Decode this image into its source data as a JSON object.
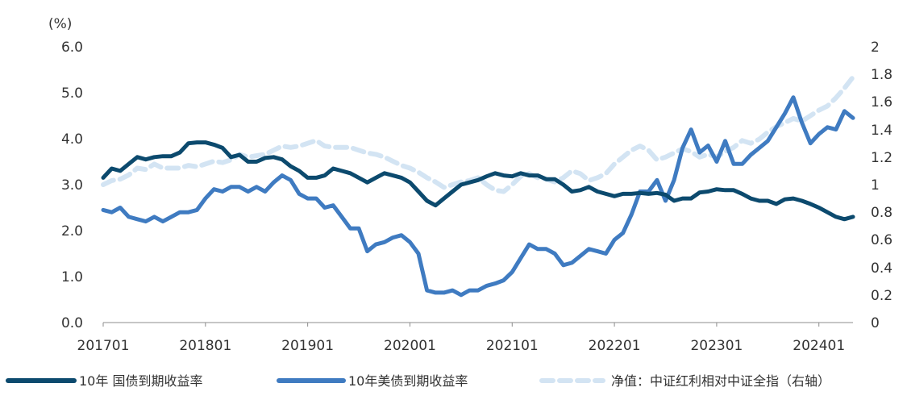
{
  "chart_data": {
    "type": "line",
    "title": "",
    "y_left": {
      "unit_label": "(%)",
      "range": [
        0,
        6
      ],
      "ticks": [
        "0.0",
        "1.0",
        "2.0",
        "3.0",
        "4.0",
        "5.0",
        "6.0"
      ]
    },
    "y_right": {
      "range": [
        0,
        2
      ],
      "ticks": [
        "0",
        "0.2",
        "0.4",
        "0.6",
        "0.8",
        "1",
        "1.2",
        "1.4",
        "1.6",
        "1.8",
        "2"
      ]
    },
    "x_axis": {
      "ticks": [
        "201701",
        "201801",
        "201901",
        "202001",
        "202101",
        "202201",
        "202301",
        "202401"
      ],
      "range": [
        "2017-01",
        "2024-05"
      ]
    },
    "grid": false,
    "legend_position": "bottom",
    "series": [
      {
        "name": "10年 国债到期收益率",
        "axis": "left",
        "color": "#0c4a6e",
        "style": "solid",
        "points": [
          [
            "2017-01",
            3.15
          ],
          [
            "2017-02",
            3.35
          ],
          [
            "2017-03",
            3.3
          ],
          [
            "2017-04",
            3.45
          ],
          [
            "2017-05",
            3.6
          ],
          [
            "2017-06",
            3.55
          ],
          [
            "2017-07",
            3.6
          ],
          [
            "2017-08",
            3.62
          ],
          [
            "2017-09",
            3.62
          ],
          [
            "2017-10",
            3.7
          ],
          [
            "2017-11",
            3.9
          ],
          [
            "2017-12",
            3.92
          ],
          [
            "2018-01",
            3.92
          ],
          [
            "2018-02",
            3.87
          ],
          [
            "2018-03",
            3.8
          ],
          [
            "2018-04",
            3.6
          ],
          [
            "2018-05",
            3.65
          ],
          [
            "2018-06",
            3.5
          ],
          [
            "2018-07",
            3.5
          ],
          [
            "2018-08",
            3.58
          ],
          [
            "2018-09",
            3.6
          ],
          [
            "2018-10",
            3.55
          ],
          [
            "2018-11",
            3.4
          ],
          [
            "2018-12",
            3.3
          ],
          [
            "2019-01",
            3.15
          ],
          [
            "2019-02",
            3.15
          ],
          [
            "2019-03",
            3.2
          ],
          [
            "2019-04",
            3.35
          ],
          [
            "2019-05",
            3.3
          ],
          [
            "2019-06",
            3.25
          ],
          [
            "2019-07",
            3.15
          ],
          [
            "2019-08",
            3.05
          ],
          [
            "2019-09",
            3.15
          ],
          [
            "2019-10",
            3.25
          ],
          [
            "2019-11",
            3.2
          ],
          [
            "2019-12",
            3.15
          ],
          [
            "2020-01",
            3.05
          ],
          [
            "2020-02",
            2.85
          ],
          [
            "2020-03",
            2.65
          ],
          [
            "2020-04",
            2.55
          ],
          [
            "2020-05",
            2.7
          ],
          [
            "2020-06",
            2.85
          ],
          [
            "2020-07",
            3.0
          ],
          [
            "2020-08",
            3.05
          ],
          [
            "2020-09",
            3.1
          ],
          [
            "2020-10",
            3.18
          ],
          [
            "2020-11",
            3.25
          ],
          [
            "2020-12",
            3.2
          ],
          [
            "2021-01",
            3.18
          ],
          [
            "2021-02",
            3.25
          ],
          [
            "2021-03",
            3.2
          ],
          [
            "2021-04",
            3.2
          ],
          [
            "2021-05",
            3.12
          ],
          [
            "2021-06",
            3.12
          ],
          [
            "2021-07",
            3.0
          ],
          [
            "2021-08",
            2.85
          ],
          [
            "2021-09",
            2.88
          ],
          [
            "2021-10",
            2.95
          ],
          [
            "2021-11",
            2.85
          ],
          [
            "2021-12",
            2.8
          ],
          [
            "2022-01",
            2.75
          ],
          [
            "2022-02",
            2.8
          ],
          [
            "2022-03",
            2.8
          ],
          [
            "2022-04",
            2.82
          ],
          [
            "2022-05",
            2.8
          ],
          [
            "2022-06",
            2.82
          ],
          [
            "2022-07",
            2.78
          ],
          [
            "2022-08",
            2.65
          ],
          [
            "2022-09",
            2.7
          ],
          [
            "2022-10",
            2.7
          ],
          [
            "2022-11",
            2.83
          ],
          [
            "2022-12",
            2.85
          ],
          [
            "2023-01",
            2.9
          ],
          [
            "2023-02",
            2.88
          ],
          [
            "2023-03",
            2.88
          ],
          [
            "2023-04",
            2.8
          ],
          [
            "2023-05",
            2.7
          ],
          [
            "2023-06",
            2.65
          ],
          [
            "2023-07",
            2.65
          ],
          [
            "2023-08",
            2.58
          ],
          [
            "2023-09",
            2.68
          ],
          [
            "2023-10",
            2.7
          ],
          [
            "2023-11",
            2.65
          ],
          [
            "2023-12",
            2.58
          ],
          [
            "2024-01",
            2.5
          ],
          [
            "2024-02",
            2.4
          ],
          [
            "2024-03",
            2.3
          ],
          [
            "2024-04",
            2.25
          ],
          [
            "2024-05",
            2.3
          ]
        ]
      },
      {
        "name": "10年美债到期收益率",
        "axis": "left",
        "color": "#3f7bc1",
        "style": "solid",
        "points": [
          [
            "2017-01",
            2.45
          ],
          [
            "2017-02",
            2.4
          ],
          [
            "2017-03",
            2.5
          ],
          [
            "2017-04",
            2.3
          ],
          [
            "2017-05",
            2.25
          ],
          [
            "2017-06",
            2.2
          ],
          [
            "2017-07",
            2.3
          ],
          [
            "2017-08",
            2.2
          ],
          [
            "2017-09",
            2.3
          ],
          [
            "2017-10",
            2.4
          ],
          [
            "2017-11",
            2.4
          ],
          [
            "2017-12",
            2.45
          ],
          [
            "2018-01",
            2.7
          ],
          [
            "2018-02",
            2.9
          ],
          [
            "2018-03",
            2.85
          ],
          [
            "2018-04",
            2.95
          ],
          [
            "2018-05",
            2.95
          ],
          [
            "2018-06",
            2.85
          ],
          [
            "2018-07",
            2.95
          ],
          [
            "2018-08",
            2.85
          ],
          [
            "2018-09",
            3.05
          ],
          [
            "2018-10",
            3.2
          ],
          [
            "2018-11",
            3.1
          ],
          [
            "2018-12",
            2.8
          ],
          [
            "2019-01",
            2.7
          ],
          [
            "2019-02",
            2.7
          ],
          [
            "2019-03",
            2.5
          ],
          [
            "2019-04",
            2.55
          ],
          [
            "2019-05",
            2.3
          ],
          [
            "2019-06",
            2.05
          ],
          [
            "2019-07",
            2.05
          ],
          [
            "2019-08",
            1.55
          ],
          [
            "2019-09",
            1.7
          ],
          [
            "2019-10",
            1.75
          ],
          [
            "2019-11",
            1.85
          ],
          [
            "2019-12",
            1.9
          ],
          [
            "2020-01",
            1.75
          ],
          [
            "2020-02",
            1.5
          ],
          [
            "2020-03",
            0.7
          ],
          [
            "2020-04",
            0.65
          ],
          [
            "2020-05",
            0.65
          ],
          [
            "2020-06",
            0.7
          ],
          [
            "2020-07",
            0.6
          ],
          [
            "2020-08",
            0.7
          ],
          [
            "2020-09",
            0.7
          ],
          [
            "2020-10",
            0.8
          ],
          [
            "2020-11",
            0.85
          ],
          [
            "2020-12",
            0.92
          ],
          [
            "2021-01",
            1.1
          ],
          [
            "2021-02",
            1.4
          ],
          [
            "2021-03",
            1.7
          ],
          [
            "2021-04",
            1.6
          ],
          [
            "2021-05",
            1.6
          ],
          [
            "2021-06",
            1.5
          ],
          [
            "2021-07",
            1.25
          ],
          [
            "2021-08",
            1.3
          ],
          [
            "2021-09",
            1.45
          ],
          [
            "2021-10",
            1.6
          ],
          [
            "2021-11",
            1.55
          ],
          [
            "2021-12",
            1.5
          ],
          [
            "2022-01",
            1.8
          ],
          [
            "2022-02",
            1.95
          ],
          [
            "2022-03",
            2.35
          ],
          [
            "2022-04",
            2.85
          ],
          [
            "2022-05",
            2.85
          ],
          [
            "2022-06",
            3.1
          ],
          [
            "2022-07",
            2.65
          ],
          [
            "2022-08",
            3.1
          ],
          [
            "2022-09",
            3.8
          ],
          [
            "2022-10",
            4.2
          ],
          [
            "2022-11",
            3.7
          ],
          [
            "2022-12",
            3.85
          ],
          [
            "2023-01",
            3.5
          ],
          [
            "2023-02",
            3.95
          ],
          [
            "2023-03",
            3.45
          ],
          [
            "2023-04",
            3.45
          ],
          [
            "2023-05",
            3.65
          ],
          [
            "2023-06",
            3.8
          ],
          [
            "2023-07",
            3.95
          ],
          [
            "2023-08",
            4.25
          ],
          [
            "2023-09",
            4.55
          ],
          [
            "2023-10",
            4.9
          ],
          [
            "2023-11",
            4.35
          ],
          [
            "2023-12",
            3.9
          ],
          [
            "2024-01",
            4.1
          ],
          [
            "2024-02",
            4.25
          ],
          [
            "2024-03",
            4.2
          ],
          [
            "2024-04",
            4.6
          ],
          [
            "2024-05",
            4.45
          ]
        ]
      },
      {
        "name": "净值：中证红利相对中证全指（右轴）",
        "axis": "right",
        "color": "#d3e4f3",
        "style": "dashed",
        "points": [
          [
            "2017-01",
            1.0
          ],
          [
            "2017-02",
            1.03
          ],
          [
            "2017-03",
            1.04
          ],
          [
            "2017-04",
            1.07
          ],
          [
            "2017-05",
            1.12
          ],
          [
            "2017-06",
            1.11
          ],
          [
            "2017-07",
            1.15
          ],
          [
            "2017-08",
            1.12
          ],
          [
            "2017-09",
            1.12
          ],
          [
            "2017-10",
            1.12
          ],
          [
            "2017-11",
            1.14
          ],
          [
            "2017-12",
            1.13
          ],
          [
            "2018-01",
            1.15
          ],
          [
            "2018-02",
            1.17
          ],
          [
            "2018-03",
            1.16
          ],
          [
            "2018-04",
            1.18
          ],
          [
            "2018-05",
            1.22
          ],
          [
            "2018-06",
            1.2
          ],
          [
            "2018-07",
            1.21
          ],
          [
            "2018-08",
            1.22
          ],
          [
            "2018-09",
            1.25
          ],
          [
            "2018-10",
            1.28
          ],
          [
            "2018-11",
            1.27
          ],
          [
            "2018-12",
            1.28
          ],
          [
            "2019-01",
            1.3
          ],
          [
            "2019-02",
            1.32
          ],
          [
            "2019-03",
            1.28
          ],
          [
            "2019-04",
            1.27
          ],
          [
            "2019-05",
            1.27
          ],
          [
            "2019-06",
            1.27
          ],
          [
            "2019-07",
            1.25
          ],
          [
            "2019-08",
            1.23
          ],
          [
            "2019-09",
            1.22
          ],
          [
            "2019-10",
            1.2
          ],
          [
            "2019-11",
            1.17
          ],
          [
            "2019-12",
            1.14
          ],
          [
            "2020-01",
            1.12
          ],
          [
            "2020-02",
            1.09
          ],
          [
            "2020-03",
            1.05
          ],
          [
            "2020-04",
            1.02
          ],
          [
            "2020-05",
            0.98
          ],
          [
            "2020-06",
            1.0
          ],
          [
            "2020-07",
            1.02
          ],
          [
            "2020-08",
            1.03
          ],
          [
            "2020-09",
            1.05
          ],
          [
            "2020-10",
            1.0
          ],
          [
            "2020-11",
            0.96
          ],
          [
            "2020-12",
            0.95
          ],
          [
            "2021-01",
            1.0
          ],
          [
            "2021-02",
            1.06
          ],
          [
            "2021-03",
            1.08
          ],
          [
            "2021-04",
            1.05
          ],
          [
            "2021-05",
            1.04
          ],
          [
            "2021-06",
            1.02
          ],
          [
            "2021-07",
            1.05
          ],
          [
            "2021-08",
            1.1
          ],
          [
            "2021-09",
            1.08
          ],
          [
            "2021-10",
            1.03
          ],
          [
            "2021-11",
            1.05
          ],
          [
            "2021-12",
            1.08
          ],
          [
            "2022-01",
            1.15
          ],
          [
            "2022-02",
            1.2
          ],
          [
            "2022-03",
            1.25
          ],
          [
            "2022-04",
            1.28
          ],
          [
            "2022-05",
            1.25
          ],
          [
            "2022-06",
            1.18
          ],
          [
            "2022-07",
            1.2
          ],
          [
            "2022-08",
            1.23
          ],
          [
            "2022-09",
            1.26
          ],
          [
            "2022-10",
            1.24
          ],
          [
            "2022-11",
            1.2
          ],
          [
            "2022-12",
            1.22
          ],
          [
            "2023-01",
            1.2
          ],
          [
            "2023-02",
            1.24
          ],
          [
            "2023-03",
            1.27
          ],
          [
            "2023-04",
            1.32
          ],
          [
            "2023-05",
            1.3
          ],
          [
            "2023-06",
            1.33
          ],
          [
            "2023-07",
            1.38
          ],
          [
            "2023-08",
            1.42
          ],
          [
            "2023-09",
            1.45
          ],
          [
            "2023-10",
            1.48
          ],
          [
            "2023-11",
            1.46
          ],
          [
            "2023-12",
            1.5
          ],
          [
            "2024-01",
            1.54
          ],
          [
            "2024-02",
            1.57
          ],
          [
            "2024-03",
            1.63
          ],
          [
            "2024-04",
            1.7
          ],
          [
            "2024-05",
            1.78
          ]
        ]
      }
    ]
  }
}
